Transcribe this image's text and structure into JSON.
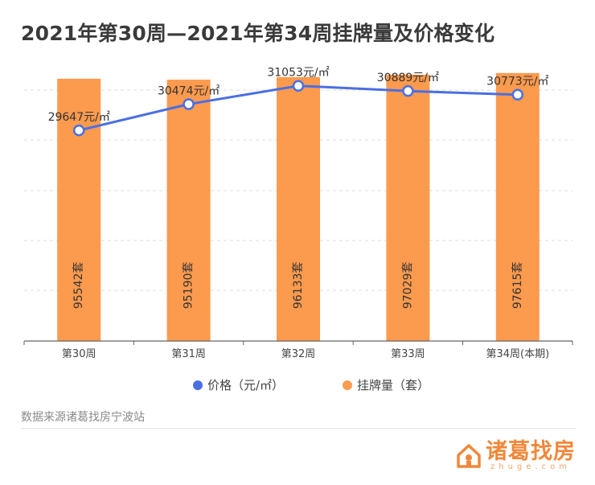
{
  "title": "2021年第30周—2021年第34周挂牌量及价格变化",
  "chart_data": {
    "type": "bar+line",
    "categories": [
      "第30周",
      "第31周",
      "第32周",
      "第33周",
      "第34周(本期)"
    ],
    "series": [
      {
        "name": "价格（元/㎡）",
        "type": "line",
        "color": "#4a6fe3",
        "values": [
          29647,
          30474,
          31053,
          30889,
          30773
        ],
        "labels": [
          "29647元/㎡",
          "30474元/㎡",
          "31053元/㎡",
          "30889元/㎡",
          "30773元/㎡"
        ]
      },
      {
        "name": "挂牌量（套）",
        "type": "bar",
        "color": "#fc9a4e",
        "values": [
          95542,
          95190,
          96133,
          97029,
          97615
        ],
        "labels": [
          "95542套",
          "95190套",
          "96133套",
          "97029套",
          "97615套"
        ]
      }
    ],
    "legend": "bottom",
    "grid": true
  },
  "source": "数据来源诸葛找房宁波站",
  "logo": {
    "name": "诸葛找房",
    "sub": "zhuge.com",
    "icon": "house-icon",
    "color": "#f0883a"
  }
}
